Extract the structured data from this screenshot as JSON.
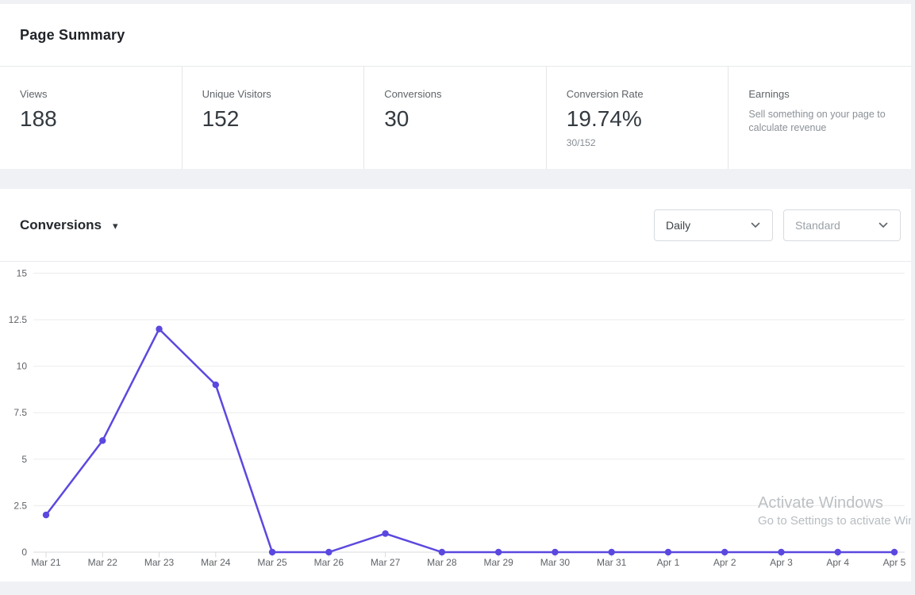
{
  "summary": {
    "title": "Page Summary",
    "stats": [
      {
        "label": "Views",
        "value": "188"
      },
      {
        "label": "Unique Visitors",
        "value": "152"
      },
      {
        "label": "Conversions",
        "value": "30"
      },
      {
        "label": "Conversion Rate",
        "value": "19.74%",
        "sub": "30/152"
      },
      {
        "label": "Earnings",
        "desc": "Sell something on your page to calculate revenue"
      }
    ]
  },
  "chart_section": {
    "title": "Conversions",
    "frequency_select": {
      "value": "Daily"
    },
    "style_select": {
      "value": "Standard"
    }
  },
  "chart_data": {
    "type": "line",
    "title": "Conversions",
    "x": [
      "Mar 21",
      "Mar 22",
      "Mar 23",
      "Mar 24",
      "Mar 25",
      "Mar 26",
      "Mar 27",
      "Mar 28",
      "Mar 29",
      "Mar 30",
      "Mar 31",
      "Apr 1",
      "Apr 2",
      "Apr 3",
      "Apr 4",
      "Apr 5"
    ],
    "values": [
      2,
      6,
      12,
      9,
      0,
      0,
      1,
      0,
      0,
      0,
      0,
      0,
      0,
      0,
      0,
      0
    ],
    "ylim": [
      0,
      15
    ],
    "yticks": [
      0,
      2.5,
      5,
      7.5,
      10,
      12.5,
      15
    ],
    "grid": true,
    "legend": "none",
    "line_color": "#5b48df",
    "point_color": "#5b48df",
    "grid_color": "#ececec",
    "axis_color": "#d9dbde",
    "tick_label_color": "#5f6368"
  },
  "watermark": {
    "line1": "Activate Windows",
    "line2": "Go to Settings to activate Win"
  }
}
